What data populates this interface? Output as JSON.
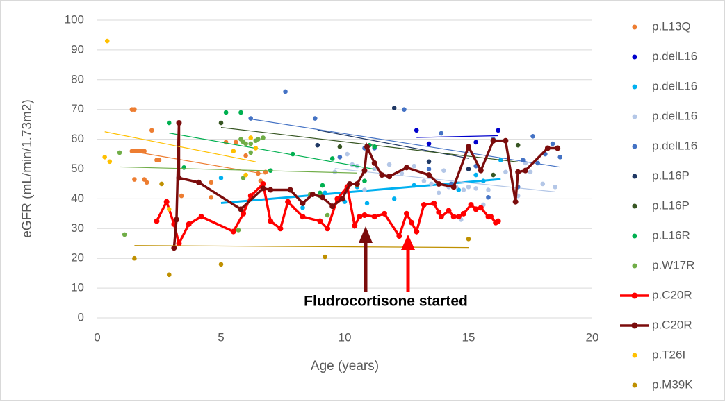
{
  "chart_data": {
    "type": "scatter",
    "x_label": "Age (years)",
    "y_label": "eGFR (mL/min/1.73m2)",
    "annotation": "Fludrocortisone started",
    "xlim": [
      0,
      20
    ],
    "xticks": [
      0,
      5,
      10,
      15,
      20
    ],
    "ylim": [
      0,
      100
    ],
    "yticks": [
      0,
      10,
      20,
      30,
      40,
      50,
      60,
      70,
      80,
      90,
      100
    ],
    "grid": true,
    "legend": "right",
    "series": [
      {
        "name": "p.L13Q",
        "color": "#ED7D31",
        "trendline": true,
        "x": [
          1.4,
          1.5,
          1.4,
          1.5,
          1.6,
          1.7,
          1.8,
          1.9,
          1.5,
          1.9,
          2.0,
          2.2,
          2.4,
          2.5,
          3.4,
          4.6,
          4.6,
          5.2,
          5.6,
          6.0,
          6.5,
          6.8,
          6.6
        ],
        "values": [
          70,
          70,
          56,
          56,
          56,
          56,
          56,
          56,
          46.5,
          46.5,
          45.5,
          63,
          53,
          53,
          41,
          45.5,
          40.5,
          59,
          59,
          54.5,
          48.5,
          49,
          46
        ]
      },
      {
        "name": "p.delL16",
        "color": "#0000CC",
        "trendline": true,
        "x": [
          12.9,
          13.4,
          15.3,
          16.2
        ],
        "values": [
          63,
          58.5,
          59,
          63
        ]
      },
      {
        "name": "p.delL16",
        "color": "#00B0F0",
        "trendline": true,
        "x": [
          5.0,
          7.7,
          8.3,
          9.2,
          10.0,
          10.5,
          10.9,
          12.0,
          12.8,
          14.6,
          15.3,
          15.6,
          16.3
        ],
        "values": [
          47,
          38.5,
          37,
          42,
          39,
          44,
          38.5,
          40,
          44.5,
          43,
          48,
          46,
          53
        ]
      },
      {
        "name": "p.delL16",
        "color": "#B4C7E7",
        "trendline": true,
        "x": [
          9.6,
          9.8,
          10.1,
          10.3,
          10.5,
          10.8,
          11.2,
          11.8,
          12.3,
          12.8,
          13.2,
          13.5,
          13.8,
          14.0,
          14.2,
          14.5,
          14.7,
          14.8,
          15.0,
          15.3,
          15.6,
          15.8,
          16.5,
          17.0,
          17.3,
          17.5,
          18.0,
          18.5
        ],
        "values": [
          49,
          54,
          55,
          51.5,
          51,
          43,
          50,
          51.5,
          48.5,
          51,
          46,
          45,
          42,
          49.5,
          44,
          44,
          33,
          43,
          44,
          43.5,
          38,
          43,
          49,
          41,
          52,
          49,
          45,
          44
        ]
      },
      {
        "name": "p.delL16",
        "color": "#4472C4",
        "trendline": true,
        "x": [
          6.2,
          7.6,
          8.8,
          9.8,
          10.8,
          11.2,
          12.4,
          13.4,
          13.9,
          14.3,
          15.3,
          15.8,
          16.0,
          17.0,
          17.2,
          17.6,
          17.8,
          18.1,
          18.4,
          18.7
        ],
        "values": [
          67,
          76,
          67,
          54,
          57,
          57,
          70,
          50,
          62,
          45,
          51,
          40.5,
          60,
          44,
          53,
          61,
          52,
          55,
          58.5,
          54
        ]
      },
      {
        "name": "p.L16P",
        "color": "#1F3864",
        "trendline": true,
        "x": [
          8.9,
          12.0,
          13.4,
          15.0
        ],
        "values": [
          58,
          70.5,
          52.5,
          50
        ]
      },
      {
        "name": "p.L16P",
        "color": "#375623",
        "trendline": true,
        "x": [
          5.0,
          9.8,
          16.0,
          17.0
        ],
        "values": [
          65.5,
          57.5,
          48,
          58
        ]
      },
      {
        "name": "p.L16R",
        "color": "#00B050",
        "trendline": true,
        "x": [
          2.9,
          3.5,
          5.2,
          5.8,
          7.0,
          7.9,
          9.0,
          9.1,
          9.5,
          10.8,
          11.0,
          11.2
        ],
        "values": [
          65.5,
          50.5,
          69,
          69,
          49.5,
          55,
          42,
          44.5,
          53.5,
          46,
          58,
          57.5
        ]
      },
      {
        "name": "p.W17R",
        "color": "#70AD47",
        "trendline": true,
        "x": [
          0.9,
          1.1,
          5.7,
          5.8,
          5.9,
          5.9,
          6.0,
          6.2,
          6.2,
          6.4,
          6.5,
          6.7,
          8.6,
          9.0,
          9.3,
          10.5
        ],
        "values": [
          55.5,
          28,
          29.5,
          60,
          59,
          47,
          58.5,
          58.5,
          55.5,
          59.5,
          60,
          60.5,
          41.5,
          41,
          34.5,
          44.5
        ]
      },
      {
        "name": "p.C20R",
        "color": "#FF0000",
        "lines": true,
        "x": [
          2.4,
          2.8,
          3.1,
          3.3,
          3.7,
          4.2,
          5.5,
          5.9,
          6.2,
          6.7,
          7.0,
          7.4,
          7.7,
          8.3,
          9.0,
          9.3,
          9.7,
          10.1,
          10.4,
          10.6,
          10.8,
          11.2,
          11.6,
          12.2,
          12.5,
          12.7,
          12.9,
          13.2,
          13.6,
          13.8,
          13.9,
          14.2,
          14.4,
          14.6,
          14.8,
          15.1,
          15.3,
          15.5,
          15.8,
          15.9,
          16.1,
          16.2
        ],
        "values": [
          32.5,
          39,
          31.5,
          25,
          31.5,
          34,
          29,
          35,
          41,
          45,
          32.5,
          30,
          39,
          34,
          32.5,
          30,
          40,
          44,
          31,
          34,
          34.5,
          34,
          35,
          27.5,
          35,
          32,
          29,
          38,
          38.5,
          35.5,
          34,
          36,
          34,
          34,
          35,
          38,
          36.5,
          37,
          34,
          34,
          32,
          32.5
        ]
      },
      {
        "name": "p.C20R",
        "color": "#7B0C0C",
        "lines": true,
        "x": [
          3.1,
          3.2,
          3.3,
          3.3,
          4.1,
          5.8,
          6.7,
          7.0,
          7.8,
          8.3,
          8.7,
          9.1,
          9.5,
          9.9,
          10.2,
          10.5,
          10.8,
          10.9,
          11.2,
          11.5,
          11.8,
          12.5,
          13.4,
          13.8,
          14.4,
          15.0,
          15.5,
          16.0,
          16.5,
          16.9,
          17.0,
          17.3,
          18.2,
          18.6
        ],
        "values": [
          23.5,
          33,
          65.5,
          47,
          45.5,
          36.5,
          43.5,
          43,
          43,
          38.5,
          41.5,
          40.5,
          37.5,
          40,
          45,
          45,
          49.5,
          57.5,
          52,
          48,
          47.5,
          50.5,
          48,
          45,
          44,
          57.5,
          49.5,
          59.5,
          59.5,
          39,
          49,
          49.5,
          57,
          57
        ]
      },
      {
        "name": "p.T26I",
        "color": "#FFC000",
        "trendline": true,
        "x": [
          0.3,
          0.4,
          0.5,
          2.9,
          5.5,
          6.0,
          6.2,
          6.4
        ],
        "values": [
          54,
          93,
          52.5,
          36.5,
          56,
          48,
          60.5,
          57
        ]
      },
      {
        "name": "p.M39K",
        "color": "#BF9000",
        "trendline": true,
        "x": [
          1.5,
          2.6,
          2.9,
          5.0,
          9.2,
          15.0
        ],
        "values": [
          20,
          45,
          14.5,
          18,
          20.5,
          26.5
        ]
      }
    ]
  }
}
